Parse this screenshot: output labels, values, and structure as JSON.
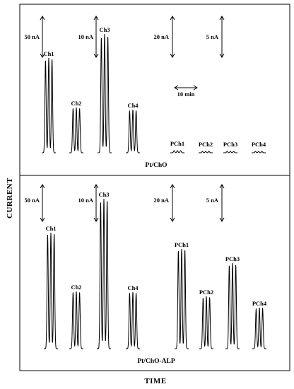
{
  "chart_data": [
    {
      "type": "line",
      "caption": "Pt/ChO",
      "peaks_per_signal": 3,
      "scale_bars": [
        {
          "label": "50 nA"
        },
        {
          "label": "10 nA"
        },
        {
          "label": "20 nA"
        },
        {
          "label": "5 nA"
        }
      ],
      "time_bar_label": "10 min",
      "series": [
        {
          "name": "Ch1",
          "peak_heights": [
            131,
            134,
            133
          ]
        },
        {
          "name": "Ch2",
          "peak_heights": [
            63,
            64,
            63
          ]
        },
        {
          "name": "Ch3",
          "peak_heights": [
            163,
            168,
            165
          ]
        },
        {
          "name": "Ch4",
          "peak_heights": [
            59,
            61,
            60
          ]
        },
        {
          "name": "PCh1",
          "peak_heights": [
            3,
            3,
            3
          ]
        },
        {
          "name": "PCh2",
          "peak_heights": [
            2,
            2,
            2
          ]
        },
        {
          "name": "PCh3",
          "peak_heights": [
            2,
            2,
            2
          ]
        },
        {
          "name": "PCh4",
          "peak_heights": [
            2,
            2,
            2
          ]
        }
      ]
    },
    {
      "type": "line",
      "caption": "Pt/ChO-ALP",
      "peaks_per_signal": 3,
      "scale_bars": [
        {
          "label": "50 nA"
        },
        {
          "label": "10 nA"
        },
        {
          "label": "20 nA"
        },
        {
          "label": "5 nA"
        }
      ],
      "series": [
        {
          "name": "Ch1",
          "peak_heights": [
            162,
            164,
            163
          ]
        },
        {
          "name": "Ch2",
          "peak_heights": [
            80,
            81,
            80
          ]
        },
        {
          "name": "Ch3",
          "peak_heights": [
            208,
            212,
            210
          ]
        },
        {
          "name": "Ch4",
          "peak_heights": [
            79,
            80,
            79
          ]
        },
        {
          "name": "PCh1",
          "peak_heights": [
            139,
            141,
            140
          ]
        },
        {
          "name": "PCh2",
          "peak_heights": [
            72,
            74,
            73
          ]
        },
        {
          "name": "PCh3",
          "peak_heights": [
            118,
            121,
            119
          ]
        },
        {
          "name": "PCh4",
          "peak_heights": [
            56,
            58,
            57
          ]
        }
      ]
    }
  ],
  "axes": {
    "xlabel": "TIME",
    "ylabel": "CURRENT"
  }
}
